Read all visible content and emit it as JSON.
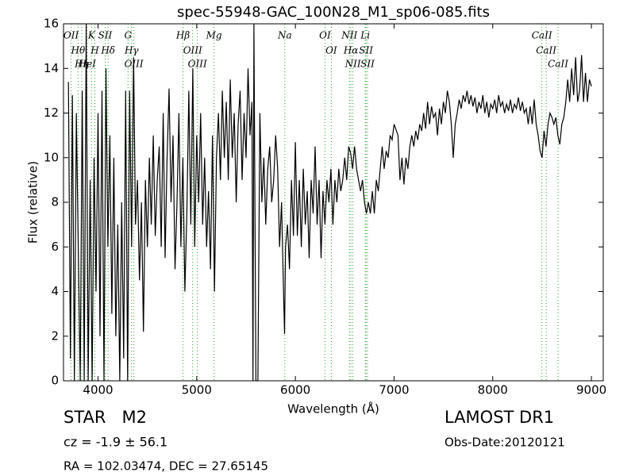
{
  "chart_data": {
    "type": "line",
    "title": "spec-55948-GAC_100N28_M1_sp06-085.fits",
    "xlabel": "Wavelength (Å)",
    "ylabel": "Flux (relative)",
    "xlim": [
      3650,
      9120
    ],
    "ylim": [
      0,
      16
    ],
    "xticks": [
      4000,
      5000,
      6000,
      7000,
      8000,
      9000
    ],
    "yticks": [
      0,
      2,
      4,
      6,
      8,
      10,
      12,
      14,
      16
    ],
    "color": "#000000",
    "line_color": "#2ca02c",
    "lines": [
      {
        "label": "OII",
        "wavelength": 3727
      },
      {
        "label": "Hθ",
        "wavelength": 3798
      },
      {
        "label": "Hη",
        "wavelength": 3835
      },
      {
        "label": "K",
        "wavelength": 3934
      },
      {
        "label": "H",
        "wavelength": 3968
      },
      {
        "label": "HeI",
        "wavelength": 3889
      },
      {
        "label": "SII",
        "wavelength": 4072
      },
      {
        "label": "Hδ",
        "wavelength": 4102
      },
      {
        "label": "G",
        "wavelength": 4304
      },
      {
        "label": "Hγ",
        "wavelength": 4340
      },
      {
        "label": "OIII",
        "wavelength": 4363
      },
      {
        "label": "Hβ",
        "wavelength": 4861
      },
      {
        "label": "OIII",
        "wavelength": 4959
      },
      {
        "label": "OIII",
        "wavelength": 5007
      },
      {
        "label": "Mg",
        "wavelength": 5175
      },
      {
        "label": "Na",
        "wavelength": 5893
      },
      {
        "label": "OI",
        "wavelength": 6300
      },
      {
        "label": "OI",
        "wavelength": 6364
      },
      {
        "label": "NII",
        "wavelength": 6548
      },
      {
        "label": "Hα",
        "wavelength": 6563
      },
      {
        "label": "NII",
        "wavelength": 6583
      },
      {
        "label": "Li",
        "wavelength": 6708
      },
      {
        "label": "SII",
        "wavelength": 6716
      },
      {
        "label": "SII",
        "wavelength": 6731
      },
      {
        "label": "CaII",
        "wavelength": 8498
      },
      {
        "label": "CaII",
        "wavelength": 8542
      },
      {
        "label": "CaII",
        "wavelength": 8662
      }
    ],
    "annotations": [
      "STAR   M2",
      "cz = -1.9 ± 56.1",
      "RA = 102.03474, DEC = 27.65145",
      "LAMOST DR1",
      "Obs-Date:20120121"
    ],
    "x": [
      3700,
      3720,
      3740,
      3760,
      3780,
      3800,
      3820,
      3840,
      3860,
      3880,
      3900,
      3920,
      3940,
      3960,
      3980,
      4000,
      4020,
      4040,
      4060,
      4080,
      4100,
      4120,
      4140,
      4160,
      4180,
      4200,
      4220,
      4240,
      4260,
      4280,
      4300,
      4320,
      4340,
      4360,
      4380,
      4400,
      4420,
      4440,
      4460,
      4480,
      4500,
      4520,
      4540,
      4560,
      4580,
      4600,
      4620,
      4640,
      4660,
      4680,
      4700,
      4720,
      4740,
      4760,
      4780,
      4800,
      4820,
      4840,
      4860,
      4880,
      4900,
      4920,
      4940,
      4960,
      4980,
      5000,
      5020,
      5040,
      5060,
      5080,
      5100,
      5120,
      5140,
      5160,
      5180,
      5200,
      5220,
      5240,
      5260,
      5280,
      5300,
      5320,
      5340,
      5360,
      5380,
      5400,
      5420,
      5440,
      5460,
      5480,
      5500,
      5520,
      5540,
      5560,
      5570,
      5580,
      5600,
      5620,
      5640,
      5660,
      5680,
      5700,
      5720,
      5740,
      5760,
      5780,
      5800,
      5820,
      5840,
      5860,
      5880,
      5890,
      5900,
      5920,
      5940,
      5960,
      5980,
      6000,
      6020,
      6040,
      6060,
      6080,
      6100,
      6120,
      6140,
      6160,
      6180,
      6200,
      6220,
      6240,
      6260,
      6280,
      6300,
      6320,
      6340,
      6360,
      6380,
      6400,
      6420,
      6440,
      6460,
      6480,
      6500,
      6520,
      6540,
      6560,
      6580,
      6600,
      6620,
      6640,
      6660,
      6680,
      6700,
      6720,
      6740,
      6760,
      6780,
      6800,
      6820,
      6840,
      6860,
      6880,
      6900,
      6920,
      6940,
      6960,
      6980,
      7000,
      7040,
      7060,
      7080,
      7100,
      7120,
      7140,
      7160,
      7180,
      7200,
      7220,
      7240,
      7260,
      7280,
      7300,
      7320,
      7340,
      7360,
      7380,
      7400,
      7420,
      7440,
      7460,
      7480,
      7500,
      7520,
      7540,
      7560,
      7580,
      7600,
      7620,
      7640,
      7660,
      7680,
      7700,
      7720,
      7740,
      7760,
      7780,
      7800,
      7820,
      7840,
      7860,
      7880,
      7900,
      7920,
      7940,
      7960,
      7980,
      8000,
      8020,
      8040,
      8060,
      8080,
      8100,
      8120,
      8140,
      8160,
      8180,
      8200,
      8220,
      8240,
      8260,
      8280,
      8300,
      8320,
      8340,
      8360,
      8380,
      8400,
      8420,
      8440,
      8460,
      8480,
      8500,
      8520,
      8540,
      8560,
      8580,
      8600,
      8620,
      8640,
      8660,
      8680,
      8700,
      8720,
      8740,
      8760,
      8780,
      8800,
      8820,
      8840,
      8860,
      8880,
      8900,
      8920,
      8940,
      8960,
      8980,
      9000
    ],
    "values": [
      13.4,
      1,
      12.8,
      0,
      12,
      6,
      0,
      13,
      0,
      16,
      0,
      9,
      0,
      10,
      4,
      12,
      2,
      13,
      0,
      14,
      6,
      11,
      3,
      10,
      2,
      7,
      0,
      8,
      1,
      13,
      0,
      13,
      6,
      14.5,
      7,
      9,
      4.5,
      8,
      2.2,
      9,
      6,
      10,
      7,
      11,
      6.5,
      9,
      10.5,
      6,
      12,
      5.5,
      10,
      13.1,
      8,
      11,
      5,
      8,
      12,
      6,
      10,
      4,
      7.5,
      13,
      7,
      14,
      6,
      11,
      8,
      12,
      7,
      10,
      6,
      8.5,
      5,
      11,
      4,
      10,
      12,
      9,
      13,
      10,
      12.5,
      9,
      13.5,
      10,
      12,
      8,
      11.5,
      13,
      9,
      12,
      10,
      14,
      11,
      12.5,
      0,
      16,
      0,
      0,
      12,
      8,
      10,
      7,
      9.5,
      10.5,
      8,
      9,
      11,
      9.5,
      6,
      8,
      4,
      2.1,
      6,
      7,
      5,
      9,
      6.5,
      10.7,
      6.5,
      9,
      6,
      9.5,
      7,
      8.5,
      5.5,
      9,
      7.5,
      10.5,
      7,
      9,
      5.5,
      8.5,
      7,
      9,
      8,
      9.5,
      7,
      9,
      8,
      9.5,
      8.5,
      9,
      10,
      9,
      10.5,
      10.2,
      9.5,
      10.5,
      9.5,
      9,
      8.5,
      9,
      8,
      7.5,
      8,
      7.5,
      8.5,
      7.5,
      9,
      8.5,
      9.5,
      10.5,
      9.5,
      10.3,
      10,
      11,
      10.8,
      11.5,
      11,
      9,
      10,
      8.8,
      10,
      9.5,
      10.5,
      11,
      10.5,
      11.2,
      10.8,
      11.5,
      11.2,
      12,
      11.3,
      12.5,
      11.5,
      12.3,
      11.8,
      12,
      11,
      12.2,
      11.5,
      12.5,
      12,
      13,
      12.5,
      11.5,
      10,
      11.5,
      12,
      12.6,
      12.2,
      12.8,
      12.5,
      13,
      12.4,
      12.8,
      12.3,
      12.7,
      12,
      12.5,
      12.2,
      12.8,
      12,
      12.5,
      11.8,
      12.4,
      12.2,
      12.6,
      12,
      12.8,
      12.3,
      12.5,
      12,
      12.4,
      12.1,
      12.6,
      12,
      12.4,
      12.2,
      12.7,
      12.1,
      12.5,
      12,
      12.2,
      11.5,
      12.3,
      11.5,
      12.6,
      11.5,
      11,
      10.3,
      10,
      11.2,
      10.5,
      11.5,
      12,
      11.8,
      11.5,
      11.8,
      11,
      10.6,
      11.5,
      11.8,
      12.5,
      13.5,
      12.5,
      14,
      12.8,
      14.5,
      12.5,
      13,
      14.6,
      12.5,
      13.8,
      12.5,
      13.5,
      13.2
    ]
  }
}
